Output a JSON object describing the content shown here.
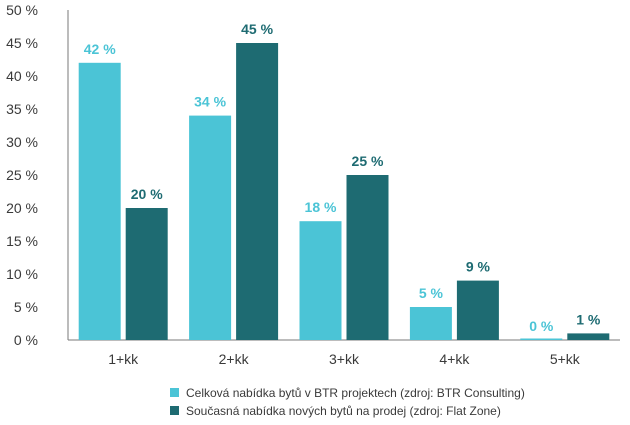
{
  "chart_data": {
    "type": "bar",
    "categories": [
      "1+kk",
      "2+kk",
      "3+kk",
      "4+kk",
      "5+kk"
    ],
    "series": [
      {
        "name": "Celková nabídka bytů v BTR projektech (zdroj: BTR Consulting)",
        "values": [
          42,
          34,
          18,
          5,
          0
        ],
        "labels": [
          "42 %",
          "34 %",
          "18 %",
          "5 %",
          "0 %"
        ],
        "color": "#4bc4d6"
      },
      {
        "name": "Současná nabídka nových bytů na prodej (zdroj: Flat Zone)",
        "values": [
          20,
          45,
          25,
          9,
          1
        ],
        "labels": [
          "20 %",
          "45 %",
          "25 %",
          "9 %",
          "1 %"
        ],
        "color": "#1e6b72"
      }
    ],
    "y_ticks": [
      "0 %",
      "5 %",
      "10 %",
      "15 %",
      "20 %",
      "25 %",
      "30 %",
      "35 %",
      "40 %",
      "45 %",
      "50 %"
    ],
    "ylim": [
      0,
      50
    ],
    "grid": false,
    "legend_position": "bottom",
    "title": "",
    "xlabel": "",
    "ylabel": ""
  }
}
